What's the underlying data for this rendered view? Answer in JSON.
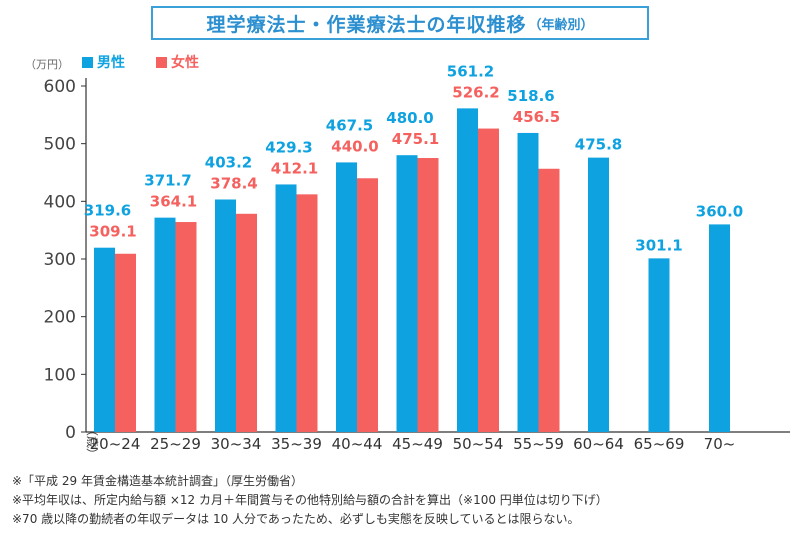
{
  "header": {
    "title": "理学療法士・作業療法士の年収推移",
    "subtitle": "（年齢別）"
  },
  "colors": {
    "male": "#0fa2e0",
    "female": "#f4615f",
    "title": "#2b8fd0",
    "axis": "#333333",
    "grid": "#e0e0e0"
  },
  "chart_data": {
    "type": "bar",
    "unit_label": "（万円）",
    "x_unit_label": "（歳）",
    "categories": [
      "20~24",
      "25~29",
      "30~34",
      "35~39",
      "40~44",
      "45~49",
      "50~54",
      "55~59",
      "60~64",
      "65~69",
      "70~"
    ],
    "ylim": [
      0,
      600
    ],
    "yticks": [
      0,
      100,
      200,
      300,
      400,
      500,
      600
    ],
    "grid": false,
    "legend_position": "top-left",
    "series": [
      {
        "name": "男性",
        "values": [
          319.6,
          371.7,
          403.2,
          429.3,
          467.5,
          480.0,
          561.2,
          518.6,
          475.8,
          301.1,
          360.0
        ]
      },
      {
        "name": "女性",
        "values": [
          309.1,
          364.1,
          378.4,
          412.1,
          440.0,
          475.1,
          526.2,
          456.5,
          null,
          null,
          null
        ]
      }
    ]
  },
  "notes": [
    "※「平成 29 年賃金構造基本統計調査」（厚生労働省）",
    "※平均年収は、所定内給与額 ×12 カ月＋年間賞与その他特別給与額の合計を算出（※100 円単位は切り下げ）",
    "※70 歳以降の勤続者の年収データは 10 人分であったため、必ずしも実態を反映しているとは限らない。"
  ]
}
